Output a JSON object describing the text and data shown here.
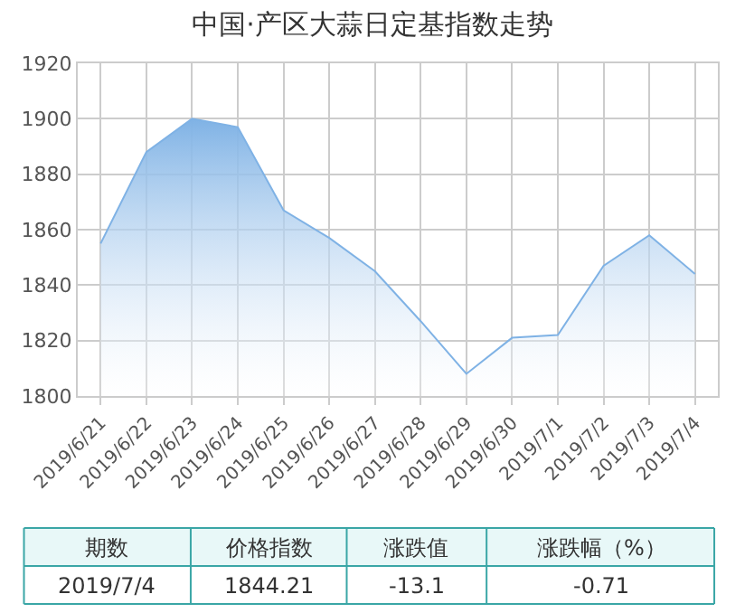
{
  "chart_data": {
    "type": "area",
    "title": "中国·产区大蒜日定基指数走势",
    "categories": [
      "2019/6/21",
      "2019/6/22",
      "2019/6/23",
      "2019/6/24",
      "2019/6/25",
      "2019/6/26",
      "2019/6/27",
      "2019/6/28",
      "2019/6/29",
      "2019/6/30",
      "2019/7/1",
      "2019/7/2",
      "2019/7/3",
      "2019/7/4"
    ],
    "series": [
      {
        "color": "#7fb2e5",
        "values": [
          1855,
          1888,
          1900,
          1897,
          1867,
          1857,
          1845,
          1827,
          1808,
          1821,
          1822,
          1847,
          1858,
          1844
        ]
      }
    ],
    "ylim": [
      1800,
      1920
    ],
    "yticks": [
      1800,
      1820,
      1840,
      1860,
      1880,
      1900,
      1920
    ],
    "grid": true,
    "annotations": [
      "期数",
      "价格指数",
      "涨跌值",
      "涨跌幅（%）",
      "2019/7/4",
      "1844.21",
      "-13.1",
      "-0.71"
    ]
  }
}
